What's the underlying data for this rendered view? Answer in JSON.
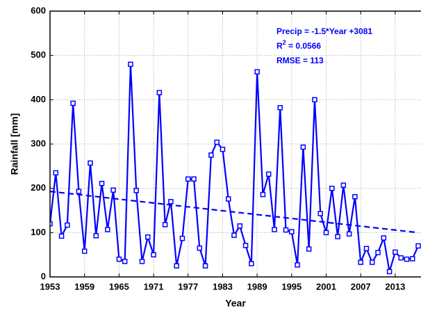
{
  "chart_data": {
    "type": "line",
    "xlabel": "Year",
    "ylabel": "Rainfall [mm]",
    "x": [
      1953,
      1954,
      1955,
      1956,
      1957,
      1958,
      1959,
      1960,
      1961,
      1962,
      1963,
      1964,
      1965,
      1966,
      1967,
      1968,
      1969,
      1970,
      1971,
      1972,
      1973,
      1974,
      1975,
      1976,
      1977,
      1978,
      1979,
      1980,
      1981,
      1982,
      1983,
      1984,
      1985,
      1986,
      1987,
      1988,
      1989,
      1990,
      1991,
      1992,
      1993,
      1994,
      1995,
      1996,
      1997,
      1998,
      1999,
      2000,
      2001,
      2002,
      2003,
      2004,
      2005,
      2006,
      2007,
      2008,
      2009,
      2010,
      2011,
      2012,
      2013,
      2014,
      2015,
      2016,
      2017
    ],
    "series": [
      {
        "color": "#0000ff",
        "values": [
          120,
          235,
          92,
          117,
          392,
          193,
          58,
          257,
          93,
          211,
          107,
          196,
          40,
          35,
          480,
          195,
          35,
          90,
          50,
          416,
          118,
          170,
          25,
          87,
          221,
          221,
          65,
          25,
          275,
          304,
          288,
          176,
          94,
          115,
          71,
          30,
          463,
          186,
          232,
          107,
          382,
          106,
          102,
          27,
          293,
          63,
          400,
          143,
          100,
          200,
          91,
          207,
          97,
          181,
          33,
          64,
          33,
          55,
          88,
          12,
          56,
          43,
          40,
          41,
          70
        ]
      }
    ],
    "trend": {
      "color": "#0000ff",
      "x": [
        1953,
        2017
      ],
      "values": [
        193,
        100
      ]
    },
    "annotations": [
      "Precip = -1.5*Year +3081",
      {
        "base": "R",
        "sup": "2",
        "rest": " = 0.0566"
      },
      "RMSE = 113"
    ],
    "xlim": [
      1953,
      2017
    ],
    "ylim": [
      0,
      600
    ],
    "xticks": [
      1953,
      1959,
      1965,
      1971,
      1977,
      1983,
      1989,
      1995,
      2001,
      2007,
      2013
    ],
    "yticks": [
      0,
      100,
      200,
      300,
      400,
      500,
      600
    ],
    "grid": true
  }
}
